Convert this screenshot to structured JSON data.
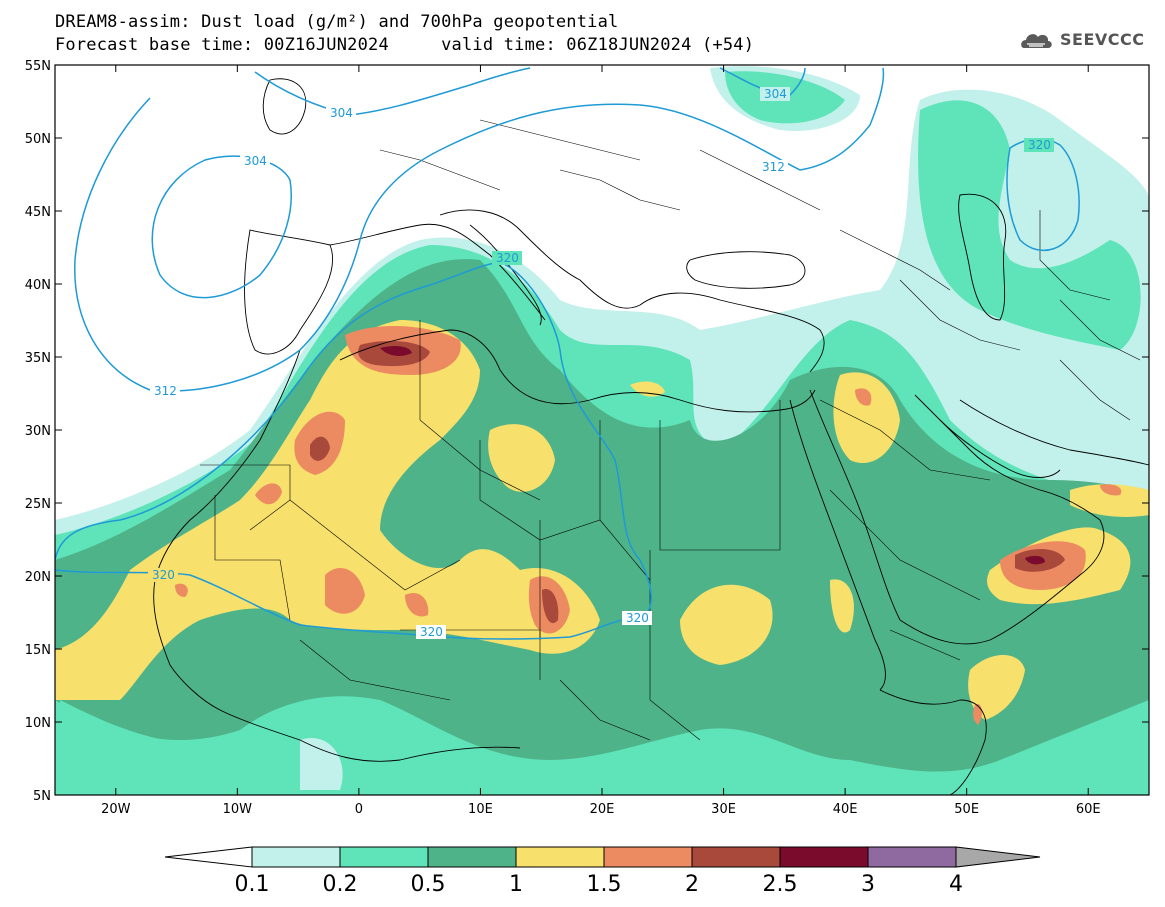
{
  "title": {
    "line1": "DREAM8-assim: Dust load (g/m²) and 700hPa geopotential",
    "line2": "Forecast base time: 00Z16JUN2024     valid time: 06Z18JUN2024 (+54)"
  },
  "logo": {
    "icon": "cloud-logo-icon",
    "text": "SEEVCCC"
  },
  "map": {
    "lon_range": [
      -25,
      65
    ],
    "lat_range": [
      5,
      55
    ],
    "lat_labels": [
      "5N",
      "10N",
      "15N",
      "20N",
      "25N",
      "30N",
      "35N",
      "40N",
      "45N",
      "50N",
      "55N"
    ],
    "lon_labels": [
      "20W",
      "10W",
      "0",
      "10E",
      "20E",
      "30E",
      "40E",
      "50E",
      "60E"
    ],
    "contour_labels": [
      "304",
      "304",
      "304",
      "312",
      "312",
      "320",
      "320",
      "320",
      "320",
      "320"
    ]
  },
  "colorbar": {
    "labels": [
      "0.1",
      "0.2",
      "0.5",
      "1",
      "1.5",
      "2",
      "2.5",
      "3",
      "4"
    ],
    "colors": [
      "#c2f0ea",
      "#5fe3b9",
      "#4fb38a",
      "#f7e06b",
      "#ec8b62",
      "#a9493b",
      "#7a0b2c",
      "#8e6aa0",
      "#a8a8a8"
    ]
  },
  "colors": {
    "level1": "#c2f0ea",
    "level2": "#5fe3b9",
    "level3": "#4fb38a",
    "level4": "#f7e06b",
    "level5": "#ec8b62",
    "level6": "#a9493b",
    "level7": "#7a0b2c",
    "contour": "#1e9ad6"
  }
}
